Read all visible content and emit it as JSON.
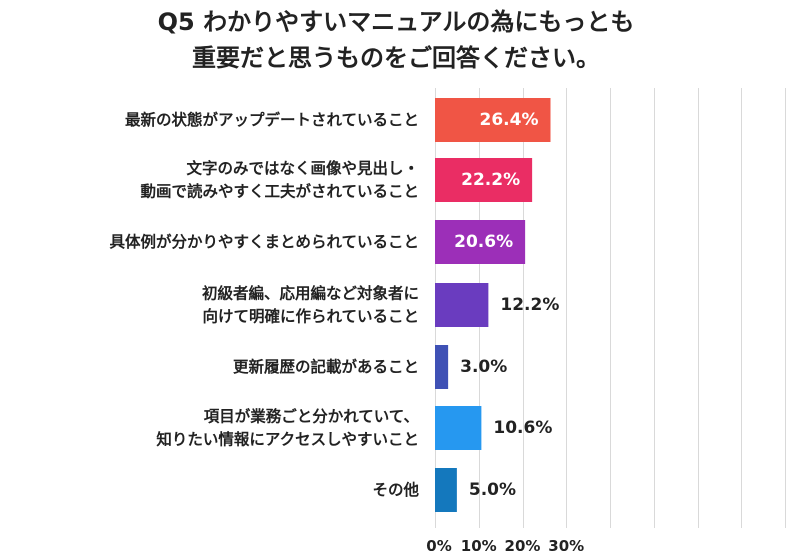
{
  "chart_data": {
    "type": "bar",
    "orientation": "horizontal",
    "title_lines": [
      "Q5 わかりやすいマニュアルの為にもっとも",
      "重要だと思うものをご回答ください。"
    ],
    "categories": [
      [
        "最新の状態がアップデートされていること"
      ],
      [
        "文字のみではなく画像や見出し・",
        "動画で読みやすく工夫がされていること"
      ],
      [
        "具体例が分かりやすくまとめられていること"
      ],
      [
        "初級者編、応用編など対象者に",
        "向けて明確に作られていること"
      ],
      [
        "更新履歴の記載があること"
      ],
      [
        "項目が業務ごと分かれていて、",
        "知りたい情報にアクセスしやすいこと"
      ],
      [
        "その他"
      ]
    ],
    "values": [
      26.4,
      22.2,
      20.6,
      12.2,
      3.0,
      10.6,
      5.0
    ],
    "value_labels": [
      "26.4%",
      "22.2%",
      "20.6%",
      "12.2%",
      "3.0%",
      "10.6%",
      "5.0%"
    ],
    "value_label_inside": [
      true,
      true,
      true,
      false,
      false,
      false,
      false
    ],
    "colors": [
      "#f05545",
      "#ea2d64",
      "#9c2fb8",
      "#6a3cbf",
      "#3f51b5",
      "#2698f0",
      "#1478bd"
    ],
    "x_ticks": [
      "0%",
      "10%",
      "20%",
      "30%"
    ],
    "x_tick_values": [
      0,
      10,
      20,
      30
    ],
    "xlim": [
      0,
      80
    ],
    "grid": true,
    "legend": "none"
  }
}
